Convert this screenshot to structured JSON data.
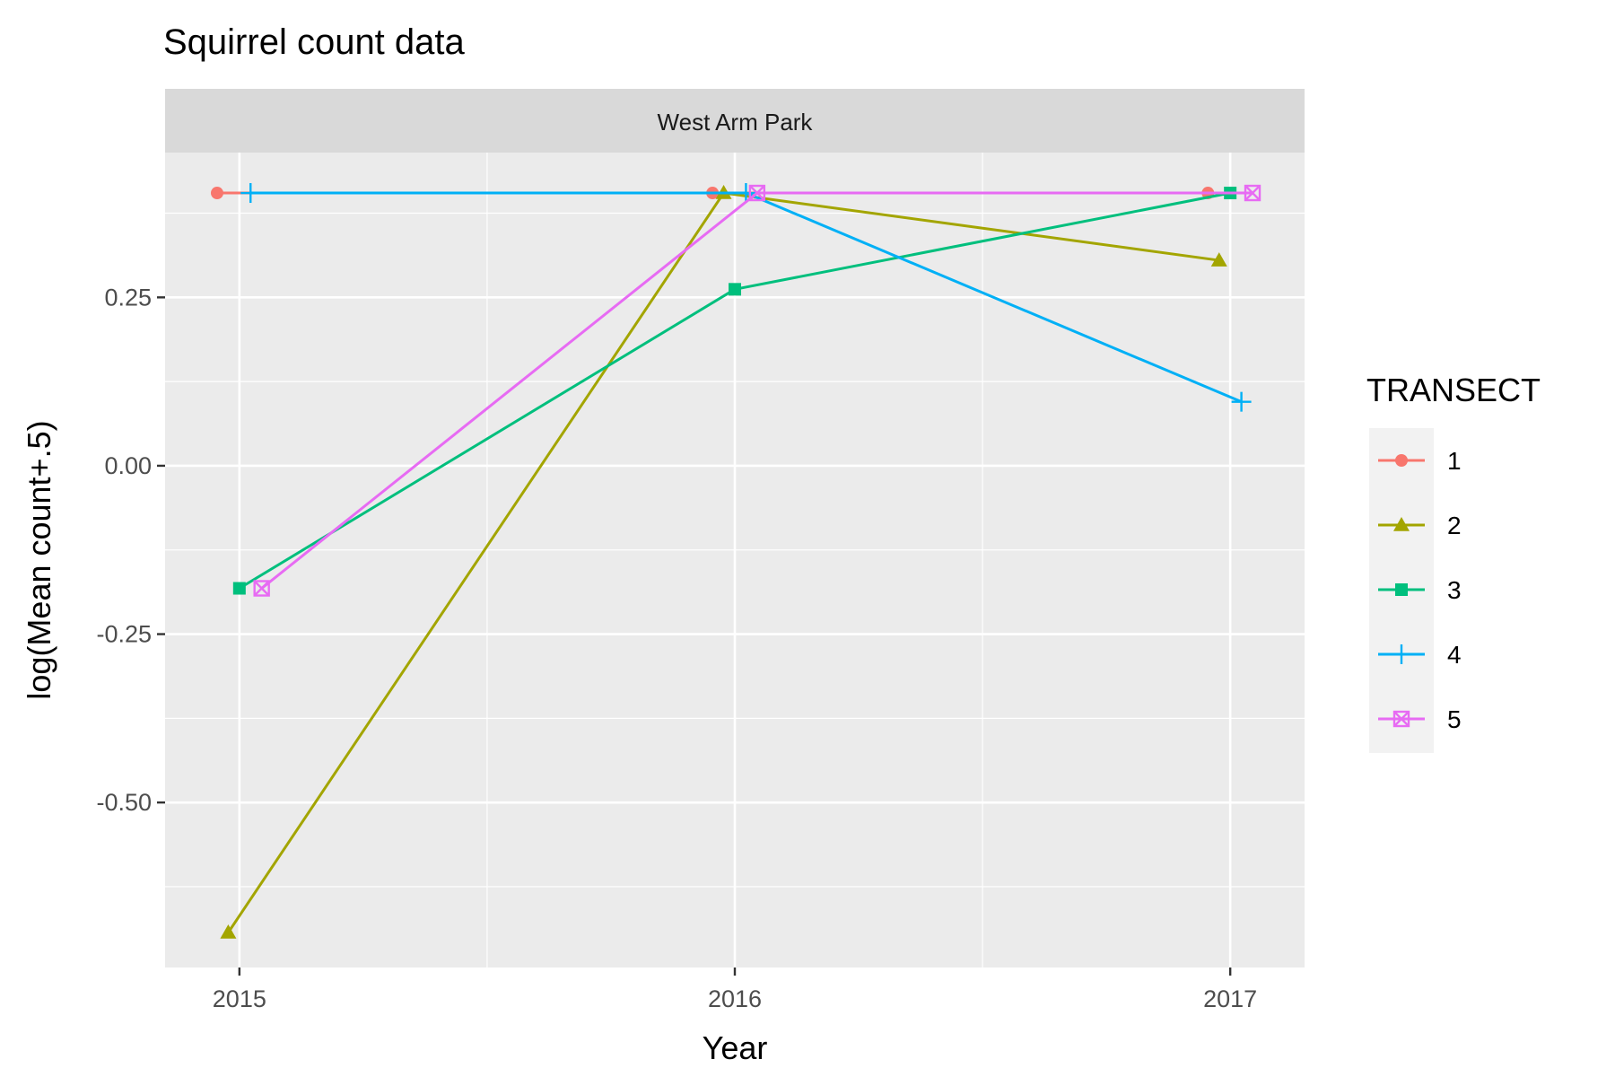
{
  "chart_data": {
    "type": "line",
    "title": "Squirrel count data",
    "facet": "West Arm Park",
    "xlabel": "Year",
    "ylabel": "log(Mean count+.5)",
    "x": [
      2015,
      2016,
      2017
    ],
    "xlim": [
      2014.85,
      2017.15
    ],
    "ylim": [
      -0.745,
      0.465
    ],
    "y_ticks": [
      -0.5,
      -0.25,
      0,
      0.25
    ],
    "y_tick_labels": [
      "-0.50",
      "-0.25",
      "0.00",
      "0.25"
    ],
    "x_ticks": [
      2015,
      2016,
      2017
    ],
    "x_tick_labels": [
      "2015",
      "2016",
      "2017"
    ],
    "grid": true,
    "legend": {
      "title": "TRANSECT",
      "position": "right"
    },
    "series": [
      {
        "name": "1",
        "color": "#F8766D",
        "marker": "circle",
        "values": [
          0.405,
          0.405,
          0.405
        ]
      },
      {
        "name": "2",
        "color": "#A3A500",
        "marker": "triangle",
        "values": [
          -0.693,
          0.405,
          0.305
        ]
      },
      {
        "name": "3",
        "color": "#00BF7D",
        "marker": "square",
        "values": [
          -0.182,
          0.262,
          0.405
        ]
      },
      {
        "name": "4",
        "color": "#00B0F6",
        "marker": "plus",
        "values": [
          0.405,
          0.405,
          0.095
        ]
      },
      {
        "name": "5",
        "color": "#E76BF3",
        "marker": "square-cross",
        "values": [
          -0.182,
          0.405,
          0.405
        ]
      }
    ]
  }
}
